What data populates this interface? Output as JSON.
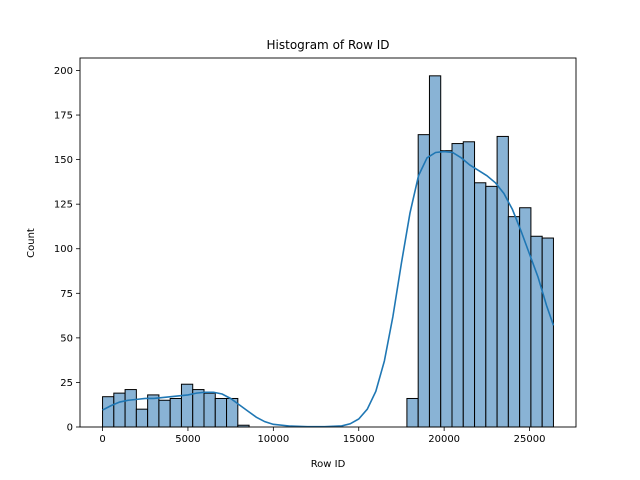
{
  "chart_data": {
    "type": "bar",
    "title": "Histogram of Row ID",
    "xlabel": "Row ID",
    "ylabel": "Count",
    "xlim": [
      -1320,
      27720
    ],
    "ylim": [
      0,
      207
    ],
    "xticks": [
      0,
      5000,
      10000,
      15000,
      20000,
      25000
    ],
    "xtick_labels": [
      "0",
      "5000",
      "10000",
      "15000",
      "20000",
      "25000"
    ],
    "yticks": [
      0,
      25,
      50,
      75,
      100,
      125,
      150,
      175,
      200
    ],
    "ytick_labels": [
      "0",
      "25",
      "50",
      "75",
      "100",
      "125",
      "150",
      "175",
      "200"
    ],
    "grid": false,
    "bin_width": 660,
    "bins": [
      {
        "x": 0,
        "count": 17
      },
      {
        "x": 660,
        "count": 19
      },
      {
        "x": 1320,
        "count": 21
      },
      {
        "x": 1980,
        "count": 10
      },
      {
        "x": 2640,
        "count": 18
      },
      {
        "x": 3300,
        "count": 15
      },
      {
        "x": 3960,
        "count": 16
      },
      {
        "x": 4620,
        "count": 24
      },
      {
        "x": 5280,
        "count": 21
      },
      {
        "x": 5940,
        "count": 19
      },
      {
        "x": 6600,
        "count": 16
      },
      {
        "x": 7260,
        "count": 16
      },
      {
        "x": 7920,
        "count": 1
      },
      {
        "x": 17820,
        "count": 16
      },
      {
        "x": 18480,
        "count": 164
      },
      {
        "x": 19140,
        "count": 197
      },
      {
        "x": 19800,
        "count": 155
      },
      {
        "x": 20460,
        "count": 159
      },
      {
        "x": 21120,
        "count": 160
      },
      {
        "x": 21780,
        "count": 137
      },
      {
        "x": 22440,
        "count": 135
      },
      {
        "x": 23100,
        "count": 163
      },
      {
        "x": 23760,
        "count": 118
      },
      {
        "x": 24420,
        "count": 123
      },
      {
        "x": 25080,
        "count": 107
      },
      {
        "x": 25740,
        "count": 106
      }
    ],
    "kde": {
      "x": [
        0,
        500,
        1000,
        1500,
        2000,
        2500,
        3000,
        3500,
        4000,
        4500,
        5000,
        5500,
        6000,
        6500,
        7000,
        7500,
        8000,
        8500,
        9000,
        9500,
        10000,
        11000,
        12000,
        13000,
        14000,
        14500,
        15000,
        15500,
        16000,
        16500,
        17000,
        17500,
        18000,
        18500,
        19000,
        19500,
        20000,
        20500,
        21000,
        21500,
        22000,
        22500,
        23000,
        23500,
        24000,
        24500,
        25000,
        25500,
        26000,
        26400
      ],
      "y": [
        9.5,
        12,
        14,
        15,
        15.5,
        16,
        16,
        16.5,
        17,
        17.5,
        18,
        19,
        19.5,
        19.5,
        18.5,
        16,
        12.5,
        9,
        5.5,
        3,
        1.5,
        0.5,
        0.2,
        0.2,
        0.6,
        1.8,
        4.5,
        10,
        20,
        37,
        62,
        92,
        120,
        141,
        151,
        154,
        154.5,
        154,
        151,
        147,
        144,
        141,
        137,
        131,
        122,
        110,
        97,
        84,
        68,
        57
      ]
    },
    "colors": {
      "bar_fill": "#89b3d5",
      "bar_edge": "#000000",
      "kde_line": "#1f77b4"
    }
  }
}
